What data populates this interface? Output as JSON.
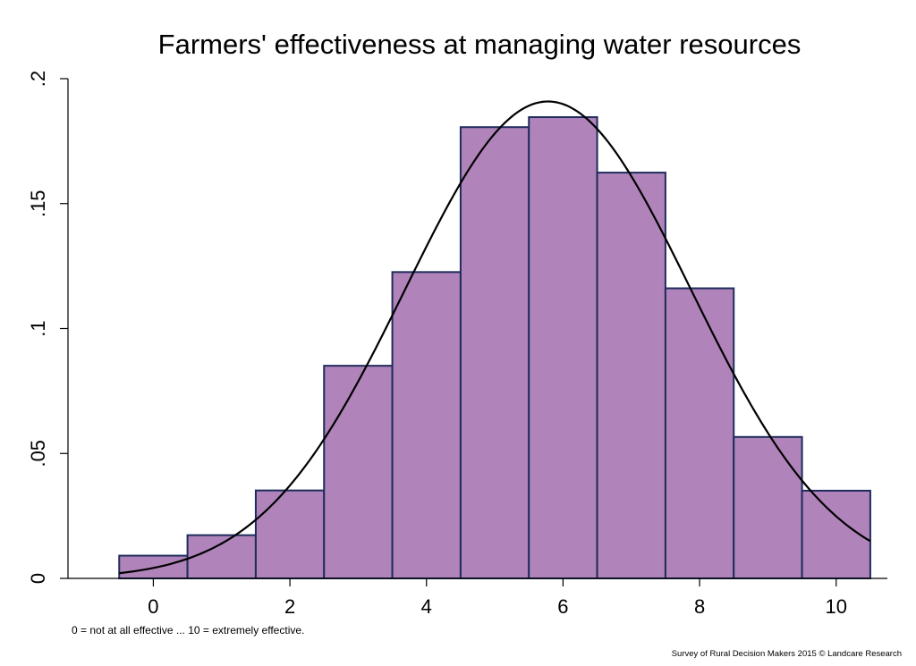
{
  "chart_data": {
    "type": "bar",
    "title": "Farmers' effectiveness at managing water resources",
    "xlabel": "",
    "ylabel": "",
    "x_ticks": [
      "0",
      "2",
      "4",
      "6",
      "8",
      "10"
    ],
    "x_tick_values": [
      0,
      2,
      4,
      6,
      8,
      10
    ],
    "y_ticks": [
      "0",
      ".05",
      ".1",
      ".15",
      ".2"
    ],
    "y_tick_values": [
      0,
      0.05,
      0.1,
      0.15,
      0.2
    ],
    "xlim": [
      -1.25,
      10.75
    ],
    "ylim": [
      0,
      0.2
    ],
    "bins": [
      0,
      1,
      2,
      3,
      4,
      5,
      6,
      7,
      8,
      9,
      10
    ],
    "bin_width": 1,
    "values": [
      0.0091,
      0.0173,
      0.0352,
      0.0851,
      0.1226,
      0.1806,
      0.1846,
      0.1624,
      0.1161,
      0.0566,
      0.0351
    ],
    "normal_curve": {
      "mean": 5.78,
      "sd": 2.09
    },
    "grid": false,
    "colors": {
      "bar_fill": "#b084ba",
      "bar_edge": "#1f2c5c",
      "curve": "#000000"
    }
  },
  "footnote": "0 = not at all effective ... 10 = extremely effective.",
  "credit": "Survey of Rural Decision Makers 2015 © Landcare Research"
}
